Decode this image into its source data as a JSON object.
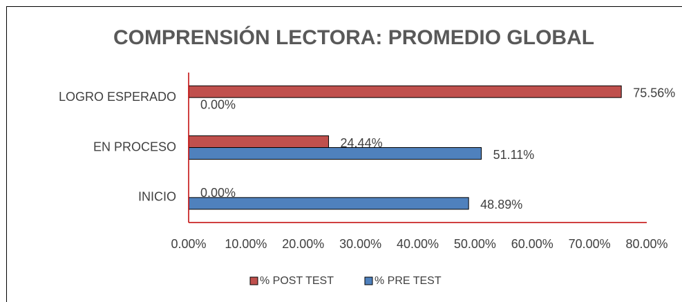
{
  "chart_data": {
    "type": "bar",
    "orientation": "horizontal",
    "title": "COMPRENSIÓN LECTORA: PROMEDIO GLOBAL",
    "categories": [
      "INICIO",
      "EN PROCESO",
      "LOGRO ESPERADO"
    ],
    "series": [
      {
        "name": "% POST TEST",
        "color": "#c0504d",
        "values": [
          0,
          24.44,
          75.56
        ],
        "value_labels": [
          "0.00%",
          "24.44%",
          "75.56%"
        ]
      },
      {
        "name": "% PRE TEST",
        "color": "#4f81bd",
        "values": [
          48.89,
          51.11,
          0
        ],
        "value_labels": [
          "48.89%",
          "51.11%",
          "0.00%"
        ]
      }
    ],
    "xlim": [
      0,
      80
    ],
    "xticks": [
      {
        "value": 0,
        "label": "0.00%"
      },
      {
        "value": 10,
        "label": "10.00%"
      },
      {
        "value": 20,
        "label": "20.00%"
      },
      {
        "value": 30,
        "label": "30.00%"
      },
      {
        "value": 40,
        "label": "40.00%"
      },
      {
        "value": 50,
        "label": "50.00%"
      },
      {
        "value": 60,
        "label": "60.00%"
      },
      {
        "value": 70,
        "label": "70.00%"
      },
      {
        "value": 80,
        "label": "80.00%"
      }
    ],
    "legend": "bottom"
  }
}
